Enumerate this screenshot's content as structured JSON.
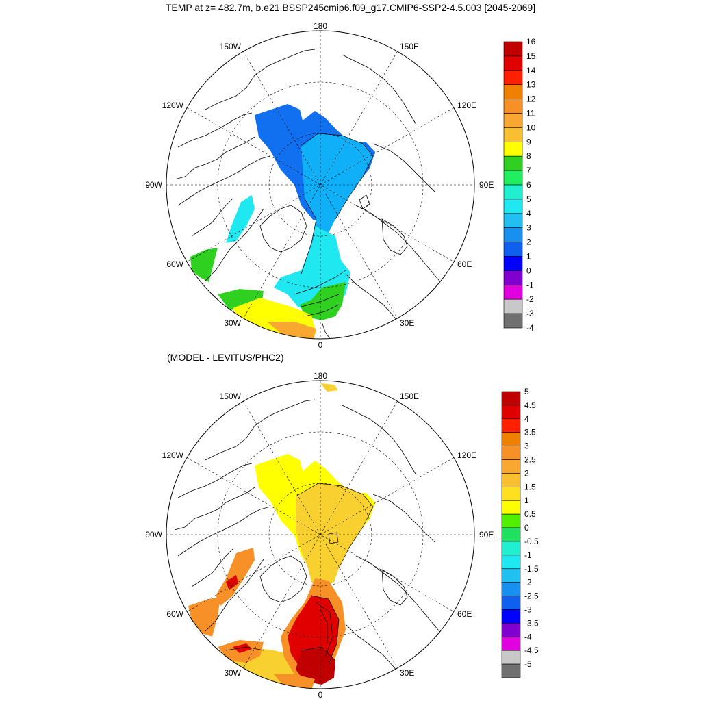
{
  "title": "TEMP at z= 482.7m, b.e21.BSSP245cmip6.f09_g17.CMIP6-SSP2-4.5.003 [2045-2069]",
  "subtitle": "(MODEL - LEVITUS/PHC2)",
  "map_labels": {
    "top": "180",
    "bottom": "0",
    "left": "90W",
    "right": "90E",
    "nw1": "150W",
    "nw2": "120W",
    "ne1": "150E",
    "ne2": "120E",
    "sw1": "60W",
    "sw2": "30W",
    "se1": "60E",
    "se2": "30E"
  },
  "colorbar_top": {
    "labels": [
      "16",
      "15",
      "14",
      "13",
      "12",
      "11",
      "10",
      "9",
      "8",
      "7",
      "6",
      "5",
      "4",
      "3",
      "2",
      "1",
      "0",
      "-1",
      "-2",
      "-3",
      "-4"
    ],
    "colors": [
      "#c00000",
      "#e00000",
      "#ff2000",
      "#f08000",
      "#f89028",
      "#f8a830",
      "#f8c030",
      "#ffff00",
      "#30d020",
      "#20f060",
      "#20f0d0",
      "#20e8f0",
      "#20c0f0",
      "#1890f0",
      "#1060f0",
      "#0000ff",
      "#8000d0",
      "#e000e0",
      "#c8c8c8",
      "#707070"
    ]
  },
  "colorbar_bottom": {
    "labels": [
      "5",
      "4.5",
      "4",
      "3.5",
      "3",
      "2.5",
      "2",
      "1.5",
      "1",
      "0.5",
      "0",
      "-0.5",
      "-1",
      "-1.5",
      "-2",
      "-2.5",
      "-3",
      "-3.5",
      "-4",
      "-4.5",
      "-5"
    ],
    "colors": [
      "#c00000",
      "#e00000",
      "#ff2000",
      "#f08000",
      "#f89028",
      "#f8a830",
      "#f8c030",
      "#ffe020",
      "#ffff00",
      "#50f000",
      "#20e060",
      "#20f0d0",
      "#20e8f0",
      "#20c0f0",
      "#1890f0",
      "#1060f0",
      "#0000ff",
      "#8000d0",
      "#e000e0",
      "#c8c8c8",
      "#707070"
    ]
  },
  "fill_colors": {
    "deep_blue": "#1070f0",
    "light_blue": "#10b0f8",
    "cyan": "#20e8f0",
    "green": "#30d020",
    "yellow": "#ffff00",
    "gold": "#f8d030",
    "orange": "#f89028",
    "red": "#e00000",
    "dark_red": "#c00000"
  }
}
